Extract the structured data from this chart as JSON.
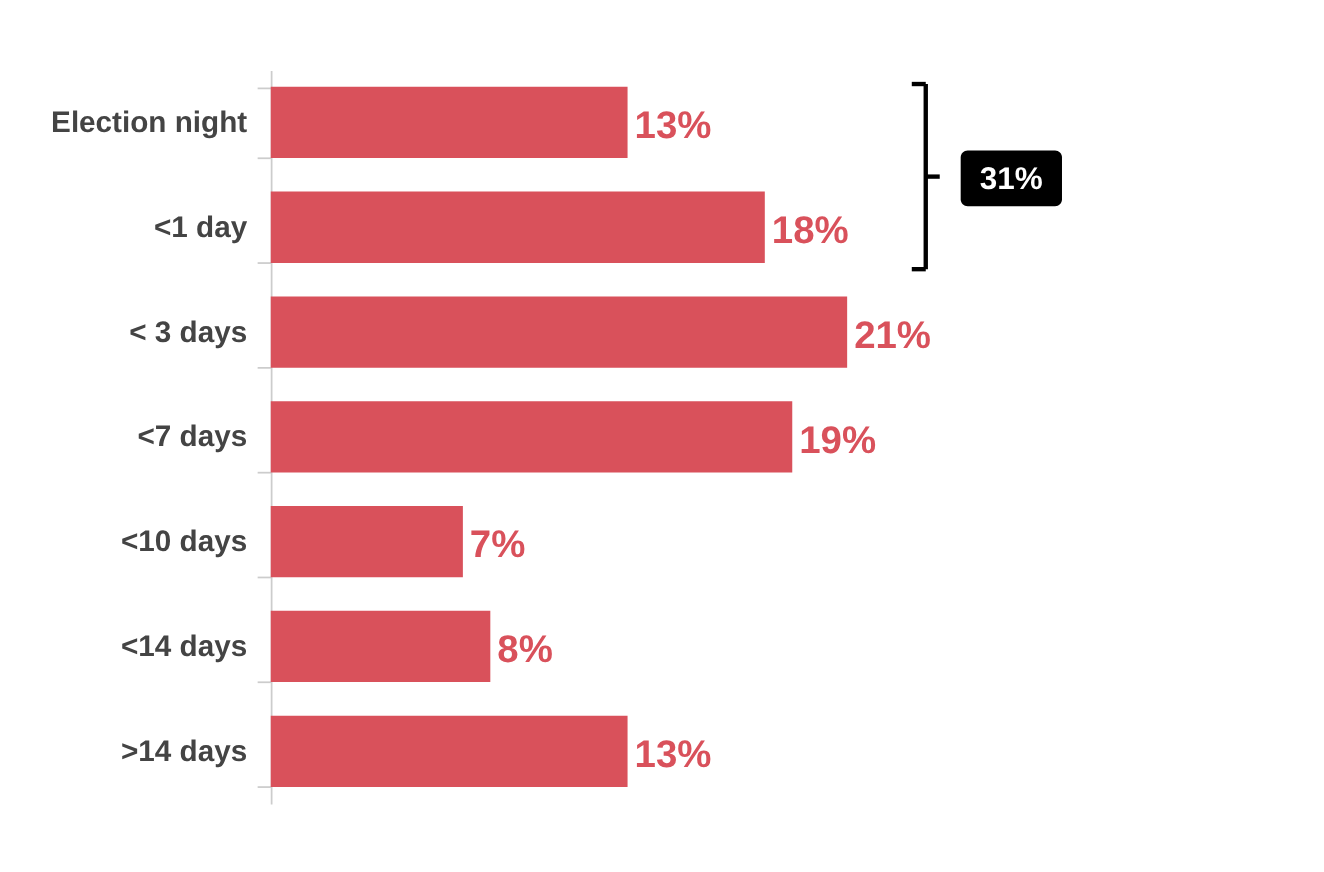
{
  "chart_data": {
    "type": "bar",
    "orientation": "horizontal",
    "categories": [
      "Election night",
      "<1 day",
      "< 3 days",
      "<7 days",
      "<10 days",
      "<14 days",
      ">14 days"
    ],
    "values": [
      13,
      18,
      21,
      19,
      7,
      8,
      13
    ],
    "value_labels": [
      "13%",
      "18%",
      "21%",
      "19%",
      "7%",
      "8%",
      "13%"
    ],
    "color": "#d9515b",
    "annotations": [
      "31%"
    ],
    "tick_labels": "y"
  }
}
